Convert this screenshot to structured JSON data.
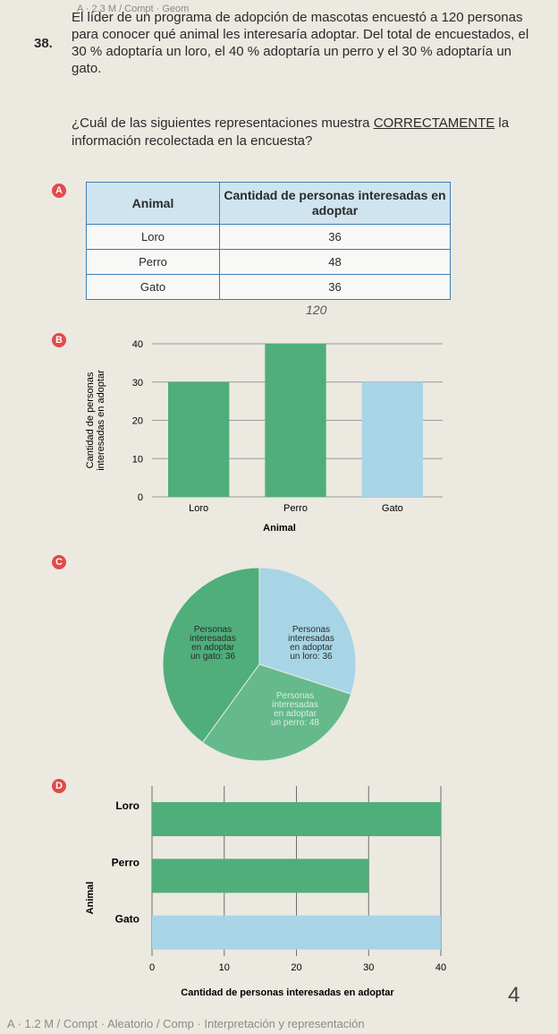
{
  "header": "A · 2.3 M / Compt · Geom",
  "question": {
    "number": "38.",
    "text": "El líder de un programa de adopción de mascotas encuestó a 120 personas para conocer qué animal les interesaría adoptar. Del total de encuestados, el 30 % adoptaría un loro, el 40 % adoptaría un perro y el 30 % adoptaría un gato.",
    "ask_before": "¿Cuál de las siguientes representaciones muestra ",
    "ask_emph": "CORRECTAMENTE",
    "ask_after": " la información recolectada en la encuesta?"
  },
  "options": {
    "a": "A",
    "b": "B",
    "c": "C",
    "d": "D"
  },
  "table": {
    "col1": "Animal",
    "col2": "Cantidad de personas interesadas en adoptar",
    "rows": [
      {
        "animal": "Loro",
        "value": "36"
      },
      {
        "animal": "Perro",
        "value": "48"
      },
      {
        "animal": "Gato",
        "value": "36"
      }
    ],
    "handwritten_total": "120"
  },
  "colors": {
    "green": "#4fae7a",
    "lightblue": "#a8d5e6",
    "option": "#e24a4a"
  },
  "chart_data": [
    {
      "type": "bar",
      "option": "B",
      "categories": [
        "Loro",
        "Perro",
        "Gato"
      ],
      "values": [
        30,
        40,
        30
      ],
      "colors": [
        "#4fae7a",
        "#4fae7a",
        "#a8d5e6"
      ],
      "xlabel": "Animal",
      "ylabel": "Cantidad de personas interesadas en adoptar",
      "ylim": [
        0,
        40
      ],
      "yticks": [
        "0",
        "10",
        "20",
        "30",
        "40"
      ]
    },
    {
      "type": "pie",
      "option": "C",
      "slices": [
        {
          "label": "Personas interesadas en adoptar un gato: 36",
          "lines": [
            "Personas",
            "interesadas",
            "en adoptar",
            "un gato:  36"
          ],
          "value": 36,
          "color": "#a8d5e6"
        },
        {
          "label": "Personas interesadas en adoptar un loro: 36",
          "lines": [
            "Personas",
            "interesadas",
            "en adoptar",
            "un loro:  36"
          ],
          "value": 36,
          "color": "#66b98a"
        },
        {
          "label": "Personas interesadas en adoptar un perro: 48",
          "lines": [
            "Personas",
            "interesadas",
            "en adoptar",
            "un perro:  48"
          ],
          "value": 48,
          "color": "#4fae7a"
        }
      ]
    },
    {
      "type": "bar",
      "orientation": "horizontal",
      "option": "D",
      "categories": [
        "Loro",
        "Perro",
        "Gato"
      ],
      "values": [
        40,
        30,
        40
      ],
      "colors": [
        "#4fae7a",
        "#4fae7a",
        "#a8d5e6"
      ],
      "xlabel": "Cantidad de personas interesadas en adoptar",
      "ylabel": "Animal",
      "xlim": [
        0,
        40
      ],
      "xticks": [
        "0",
        "10",
        "20",
        "30",
        "40"
      ]
    }
  ],
  "footer": "A · 1.2 M / Compt · Aleatorio / Comp · Interpretación y representación",
  "handwritten_note": "4"
}
